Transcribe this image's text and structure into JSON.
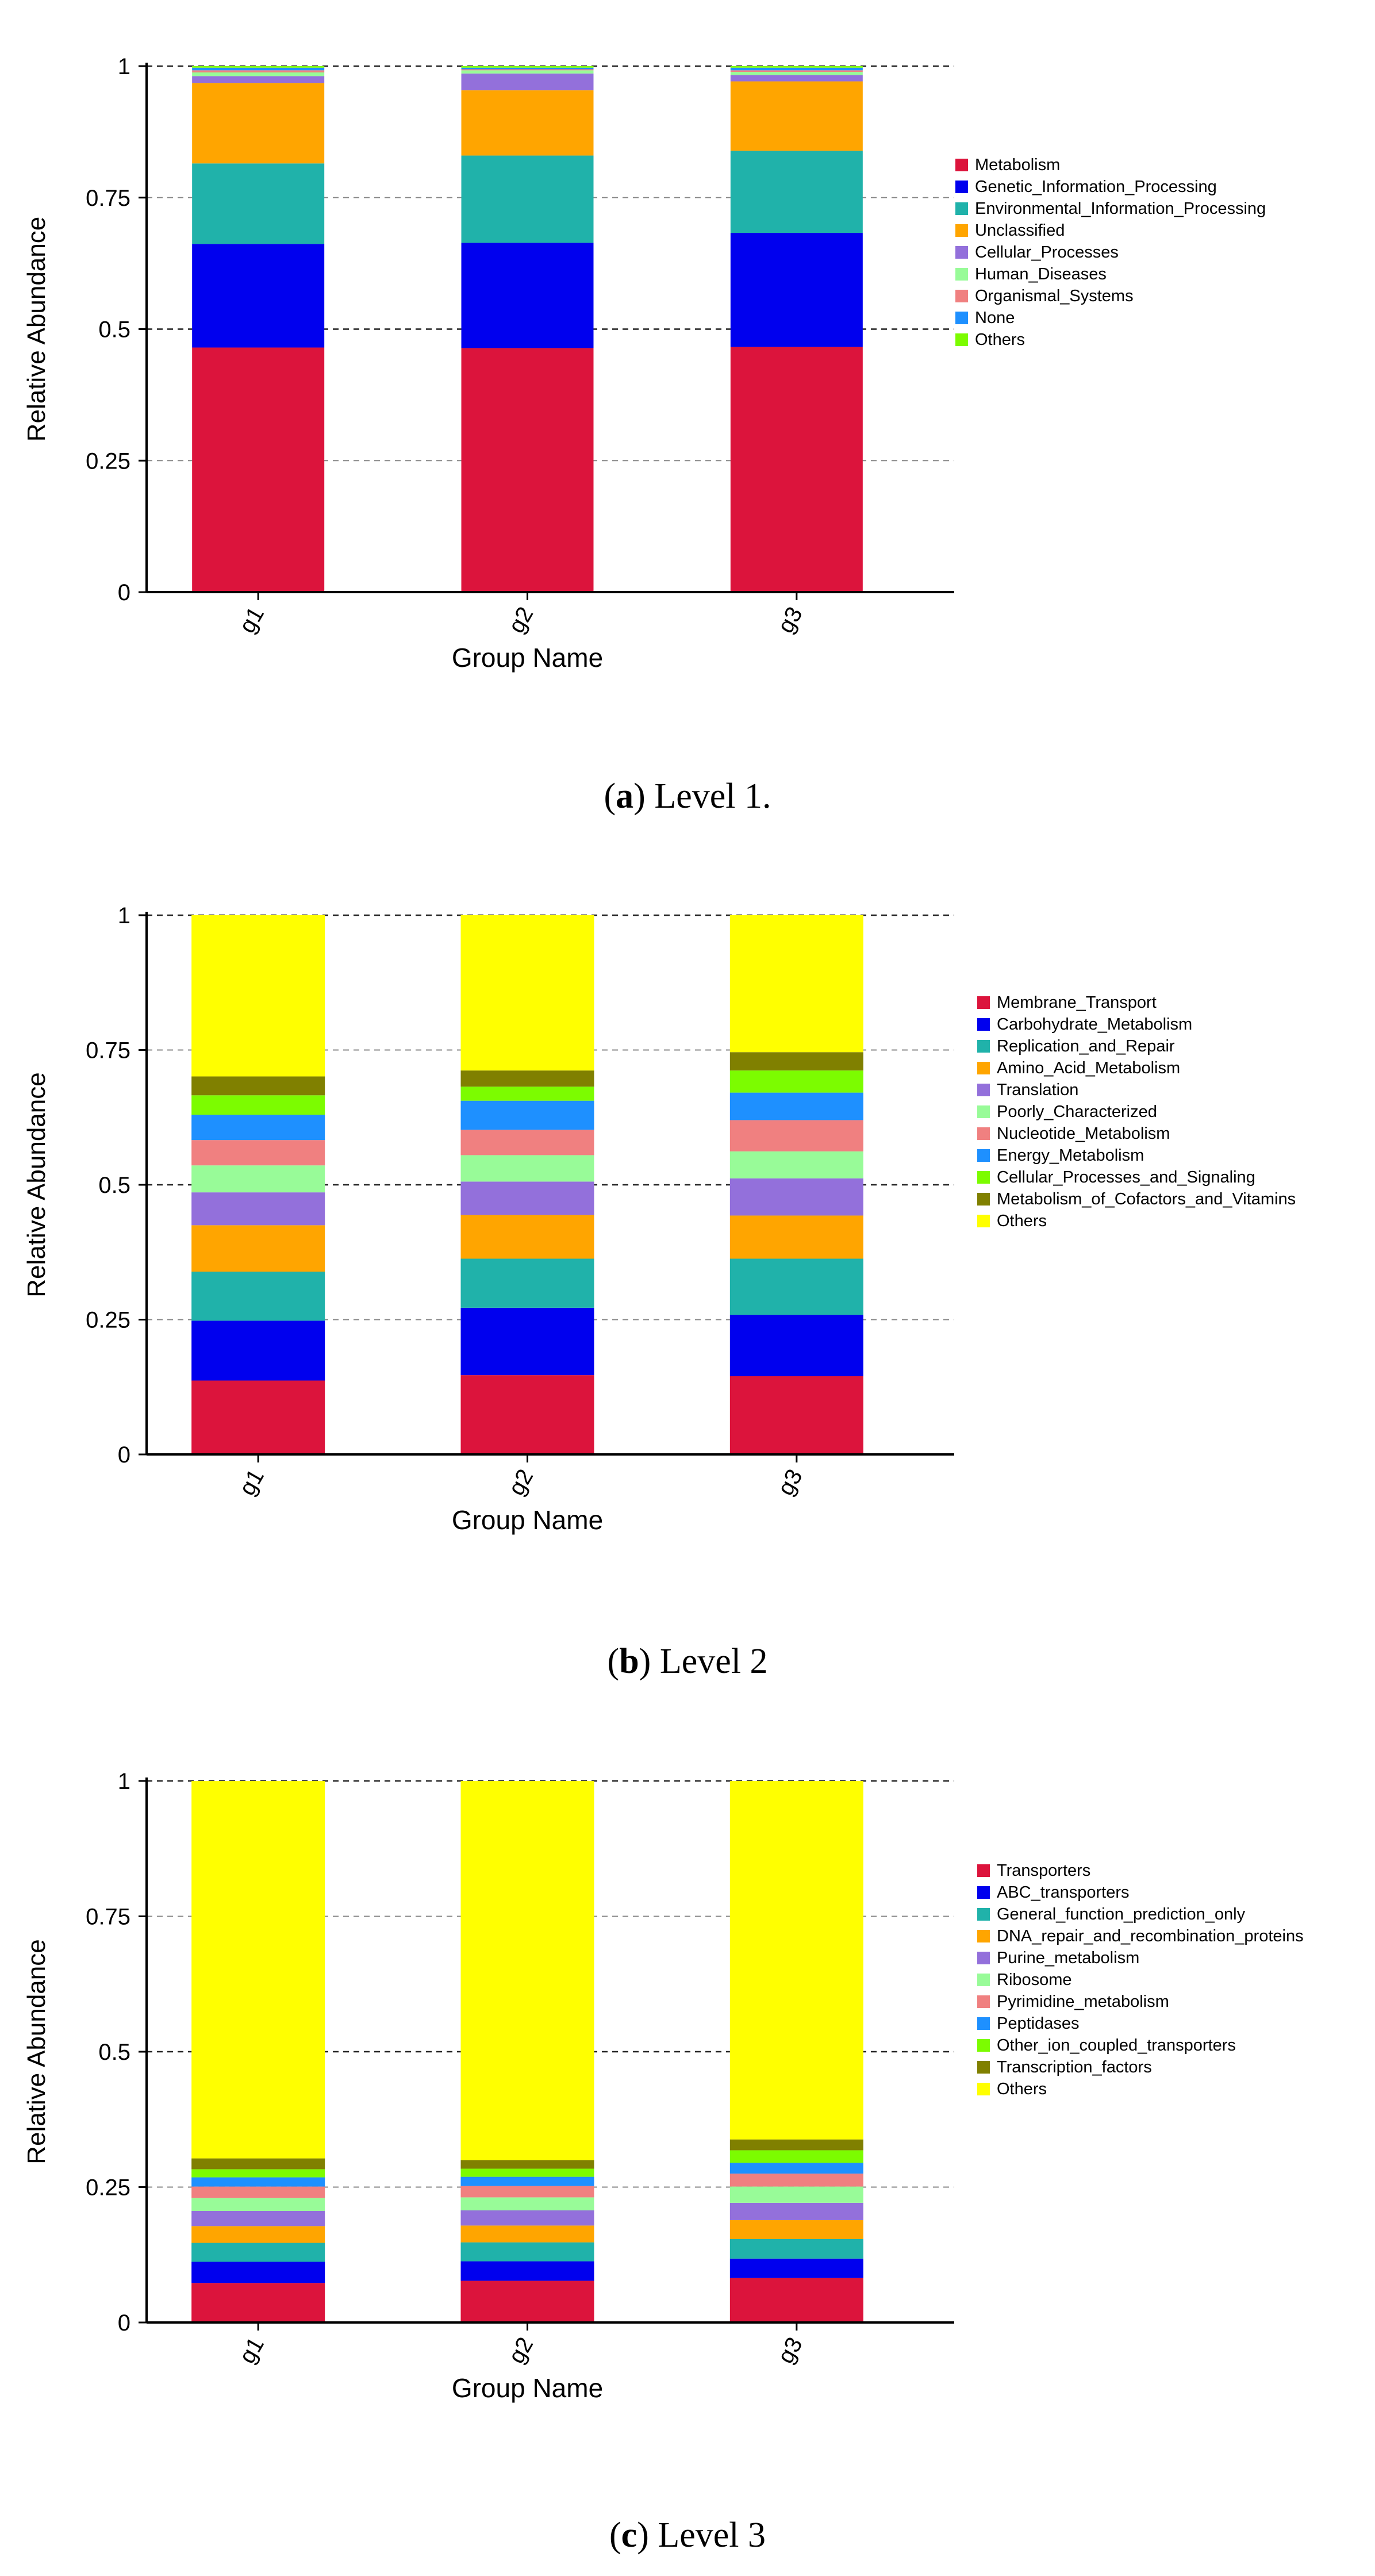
{
  "chart_data": [
    {
      "type": "bar",
      "stacked": true,
      "ylabel": "Relative Abundance",
      "xlabel": "Group Name",
      "categories": [
        "g1",
        "g2",
        "g3"
      ],
      "ylim": [
        0,
        1
      ],
      "yticks": [
        "0",
        "0.25",
        "0.5",
        "0.75",
        "1"
      ],
      "legend_position": "right",
      "caption": {
        "label": "a",
        "text": "Level 1."
      },
      "series": [
        {
          "name": "Metabolism",
          "color": "#DC143C",
          "values": [
            0.465,
            0.464,
            0.466
          ]
        },
        {
          "name": "Genetic_Information_Processing",
          "color": "#0000EE",
          "values": [
            0.197,
            0.2,
            0.217
          ]
        },
        {
          "name": "Environmental_Information_Processing",
          "color": "#20B2AA",
          "values": [
            0.153,
            0.166,
            0.156
          ]
        },
        {
          "name": "Unclassified",
          "color": "#FFA500",
          "values": [
            0.153,
            0.124,
            0.132
          ]
        },
        {
          "name": "Cellular_Processes",
          "color": "#9370DB",
          "values": [
            0.013,
            0.032,
            0.012
          ]
        },
        {
          "name": "Human_Diseases",
          "color": "#98FB98",
          "values": [
            0.007,
            0.006,
            0.006
          ]
        },
        {
          "name": "Organismal_Systems",
          "color": "#F08080",
          "values": [
            0.004,
            0.002,
            0.003
          ]
        },
        {
          "name": "None",
          "color": "#1E90FF",
          "values": [
            0.005,
            0.003,
            0.005
          ]
        },
        {
          "name": "Others",
          "color": "#7CFC00",
          "values": [
            0.003,
            0.003,
            0.003
          ]
        }
      ]
    },
    {
      "type": "bar",
      "stacked": true,
      "ylabel": "Relative Abundance",
      "xlabel": "Group Name",
      "categories": [
        "g1",
        "g2",
        "g3"
      ],
      "ylim": [
        0,
        1
      ],
      "yticks": [
        "0",
        "0.25",
        "0.5",
        "0.75",
        "1"
      ],
      "legend_position": "right",
      "caption": {
        "label": "b",
        "text": "Level 2"
      },
      "series": [
        {
          "name": "Membrane_Transport",
          "color": "#DC143C",
          "values": [
            0.137,
            0.147,
            0.145
          ]
        },
        {
          "name": "Carbohydrate_Metabolism",
          "color": "#0000EE",
          "values": [
            0.111,
            0.125,
            0.114
          ]
        },
        {
          "name": "Replication_and_Repair",
          "color": "#20B2AA",
          "values": [
            0.091,
            0.091,
            0.104
          ]
        },
        {
          "name": "Amino_Acid_Metabolism",
          "color": "#FFA500",
          "values": [
            0.086,
            0.081,
            0.08
          ]
        },
        {
          "name": "Translation",
          "color": "#9370DB",
          "values": [
            0.061,
            0.062,
            0.069
          ]
        },
        {
          "name": "Poorly_Characterized",
          "color": "#98FB98",
          "values": [
            0.05,
            0.049,
            0.05
          ]
        },
        {
          "name": "Nucleotide_Metabolism",
          "color": "#F08080",
          "values": [
            0.047,
            0.047,
            0.058
          ]
        },
        {
          "name": "Energy_Metabolism",
          "color": "#1E90FF",
          "values": [
            0.047,
            0.054,
            0.051
          ]
        },
        {
          "name": "Cellular_Processes_and_Signaling",
          "color": "#7CFC00",
          "values": [
            0.036,
            0.026,
            0.041
          ]
        },
        {
          "name": "Metabolism_of_Cofactors_and_Vitamins",
          "color": "#808000",
          "values": [
            0.035,
            0.03,
            0.034
          ]
        },
        {
          "name": "Others",
          "color": "#FFFF00",
          "values": [
            0.299,
            0.288,
            0.254
          ]
        }
      ]
    },
    {
      "type": "bar",
      "stacked": true,
      "ylabel": "Relative Abundance",
      "xlabel": "Group Name",
      "categories": [
        "g1",
        "g2",
        "g3"
      ],
      "ylim": [
        0,
        1
      ],
      "yticks": [
        "0",
        "0.25",
        "0.5",
        "0.75",
        "1"
      ],
      "legend_position": "right",
      "caption": {
        "label": "c",
        "text": "Level 3"
      },
      "series": [
        {
          "name": "Transporters",
          "color": "#DC143C",
          "values": [
            0.073,
            0.077,
            0.082
          ]
        },
        {
          "name": "ABC_transporters",
          "color": "#0000EE",
          "values": [
            0.039,
            0.036,
            0.036
          ]
        },
        {
          "name": "General_function_prediction_only",
          "color": "#20B2AA",
          "values": [
            0.035,
            0.035,
            0.036
          ]
        },
        {
          "name": "DNA_repair_and_recombination_proteins",
          "color": "#FFA500",
          "values": [
            0.031,
            0.031,
            0.035
          ]
        },
        {
          "name": "Purine_metabolism",
          "color": "#9370DB",
          "values": [
            0.028,
            0.028,
            0.032
          ]
        },
        {
          "name": "Ribosome",
          "color": "#98FB98",
          "values": [
            0.024,
            0.024,
            0.03
          ]
        },
        {
          "name": "Pyrimidine_metabolism",
          "color": "#F08080",
          "values": [
            0.021,
            0.021,
            0.024
          ]
        },
        {
          "name": "Peptidases",
          "color": "#1E90FF",
          "values": [
            0.017,
            0.017,
            0.02
          ]
        },
        {
          "name": "Other_ion_coupled_transporters",
          "color": "#7CFC00",
          "values": [
            0.015,
            0.015,
            0.023
          ]
        },
        {
          "name": "Transcription_factors",
          "color": "#808000",
          "values": [
            0.02,
            0.016,
            0.02
          ]
        },
        {
          "name": "Others",
          "color": "#FFFF00",
          "values": [
            0.697,
            0.7,
            0.662
          ]
        }
      ]
    }
  ]
}
